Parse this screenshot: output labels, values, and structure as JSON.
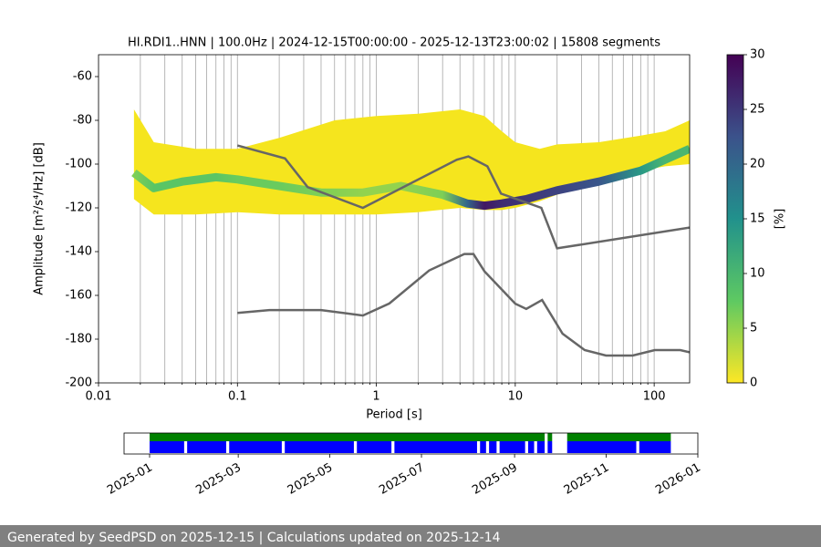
{
  "chart_data": {
    "type": "ppsd",
    "title": "HI.RDI1..HNN | 100.0Hz | 2024-12-15T00:00:00 - 2025-12-13T23:00:02 | 15808 segments",
    "xlabel": "Period [s]",
    "ylabel": "Amplitude [m²/s⁴/Hz] [dB]",
    "xscale": "log",
    "xlim": [
      0.01,
      180
    ],
    "ylim": [
      -200,
      -50
    ],
    "xticks": [
      0.01,
      0.1,
      1,
      10,
      100
    ],
    "xminorticks": [
      0.02,
      0.03,
      0.04,
      0.05,
      0.06,
      0.07,
      0.08,
      0.09,
      0.2,
      0.3,
      0.4,
      0.5,
      0.6,
      0.7,
      0.8,
      0.9,
      2,
      3,
      4,
      5,
      6,
      7,
      8,
      9,
      20,
      30,
      40,
      50,
      60,
      70,
      80,
      90
    ],
    "yticks": [
      -200,
      -180,
      -160,
      -140,
      -120,
      -100,
      -80,
      -60
    ],
    "xgrid": true,
    "density": {
      "color": "#f5e51e",
      "x": [
        0.018,
        0.025,
        0.05,
        0.1,
        0.2,
        0.5,
        1,
        2,
        4,
        6,
        8,
        10,
        15,
        20,
        40,
        80,
        120,
        180
      ],
      "high": [
        -75,
        -90,
        -93,
        -93,
        -88,
        -80,
        -78,
        -77,
        -75,
        -78,
        -85,
        -90,
        -93,
        -91,
        -90,
        -87,
        -85,
        -80
      ],
      "low": [
        -116,
        -123,
        -123,
        -122,
        -123,
        -123,
        -123,
        -122,
        -120,
        -121,
        -121,
        -120,
        -117,
        -114,
        -108,
        -103,
        -101,
        -100
      ]
    },
    "mode": {
      "x": [
        0.018,
        0.025,
        0.04,
        0.07,
        0.1,
        0.2,
        0.4,
        0.8,
        1.5,
        3,
        4.5,
        6,
        8,
        12,
        20,
        40,
        80,
        120,
        180
      ],
      "values": [
        -104,
        -111,
        -108,
        -106,
        -107,
        -110,
        -113,
        -113,
        -110,
        -114,
        -118,
        -119,
        -118,
        -116,
        -112,
        -108,
        -103,
        -98,
        -93
      ],
      "percent": [
        6,
        8,
        8,
        8,
        7,
        7,
        6,
        5,
        5,
        6,
        20,
        28,
        26,
        25,
        24,
        22,
        14,
        10,
        10
      ]
    },
    "series": [
      {
        "color": "#666666",
        "x": [
          0.1,
          0.22,
          0.32,
          0.8,
          3.8,
          4.6,
          6.3,
          7.9,
          15.4,
          20,
          180
        ],
        "values": [
          -91.5,
          -97.4,
          -110.5,
          -120,
          -98,
          -96.5,
          -101,
          -113.5,
          -120,
          -138.5,
          -129
        ]
      },
      {
        "color": "#666666",
        "x": [
          0.1,
          0.17,
          0.4,
          0.8,
          1.24,
          2.4,
          4.3,
          5,
          6,
          10,
          12,
          15.6,
          21.9,
          31.6,
          45,
          70,
          101,
          154,
          180
        ],
        "values": [
          -168,
          -166.7,
          -166.7,
          -169.2,
          -163.7,
          -148.6,
          -141.1,
          -141.1,
          -149,
          -163.8,
          -166.2,
          -162.1,
          -177.5,
          -185,
          -187.5,
          -187.5,
          -185,
          -185,
          -186
        ]
      }
    ],
    "colorbar": {
      "label": "[%]",
      "lim": [
        0,
        30
      ],
      "ticks": [
        0,
        5,
        10,
        15,
        20,
        25,
        30
      ]
    },
    "timeline": {
      "xlim": [
        "2024-12-15",
        "2026-01-01"
      ],
      "xticks": [
        "2025-01",
        "2025-03",
        "2025-05",
        "2025-07",
        "2025-09",
        "2025-11",
        "2026-01"
      ],
      "data_color": "#008000",
      "used_color": "#0000ff",
      "data": [
        [
          "2025-01-01",
          "2025-09-21"
        ],
        [
          "2025-09-23",
          "2025-09-26"
        ],
        [
          "2025-10-06",
          "2025-12-14"
        ]
      ],
      "used": [
        [
          "2025-01-01",
          "2025-01-24"
        ],
        [
          "2025-01-26",
          "2025-02-21"
        ],
        [
          "2025-02-23",
          "2025-03-30"
        ],
        [
          "2025-04-01",
          "2025-05-17"
        ],
        [
          "2025-05-19",
          "2025-06-11"
        ],
        [
          "2025-06-13",
          "2025-08-07"
        ],
        [
          "2025-08-09",
          "2025-08-13"
        ],
        [
          "2025-08-15",
          "2025-08-20"
        ],
        [
          "2025-08-22",
          "2025-09-08"
        ],
        [
          "2025-09-10",
          "2025-09-14"
        ],
        [
          "2025-09-16",
          "2025-09-21"
        ],
        [
          "2025-09-23",
          "2025-09-26"
        ],
        [
          "2025-10-06",
          "2025-11-21"
        ],
        [
          "2025-11-23",
          "2025-12-14"
        ]
      ]
    },
    "footer": "Generated by SeedPSD on 2025-12-15 | Calculations updated on 2025-12-14"
  }
}
